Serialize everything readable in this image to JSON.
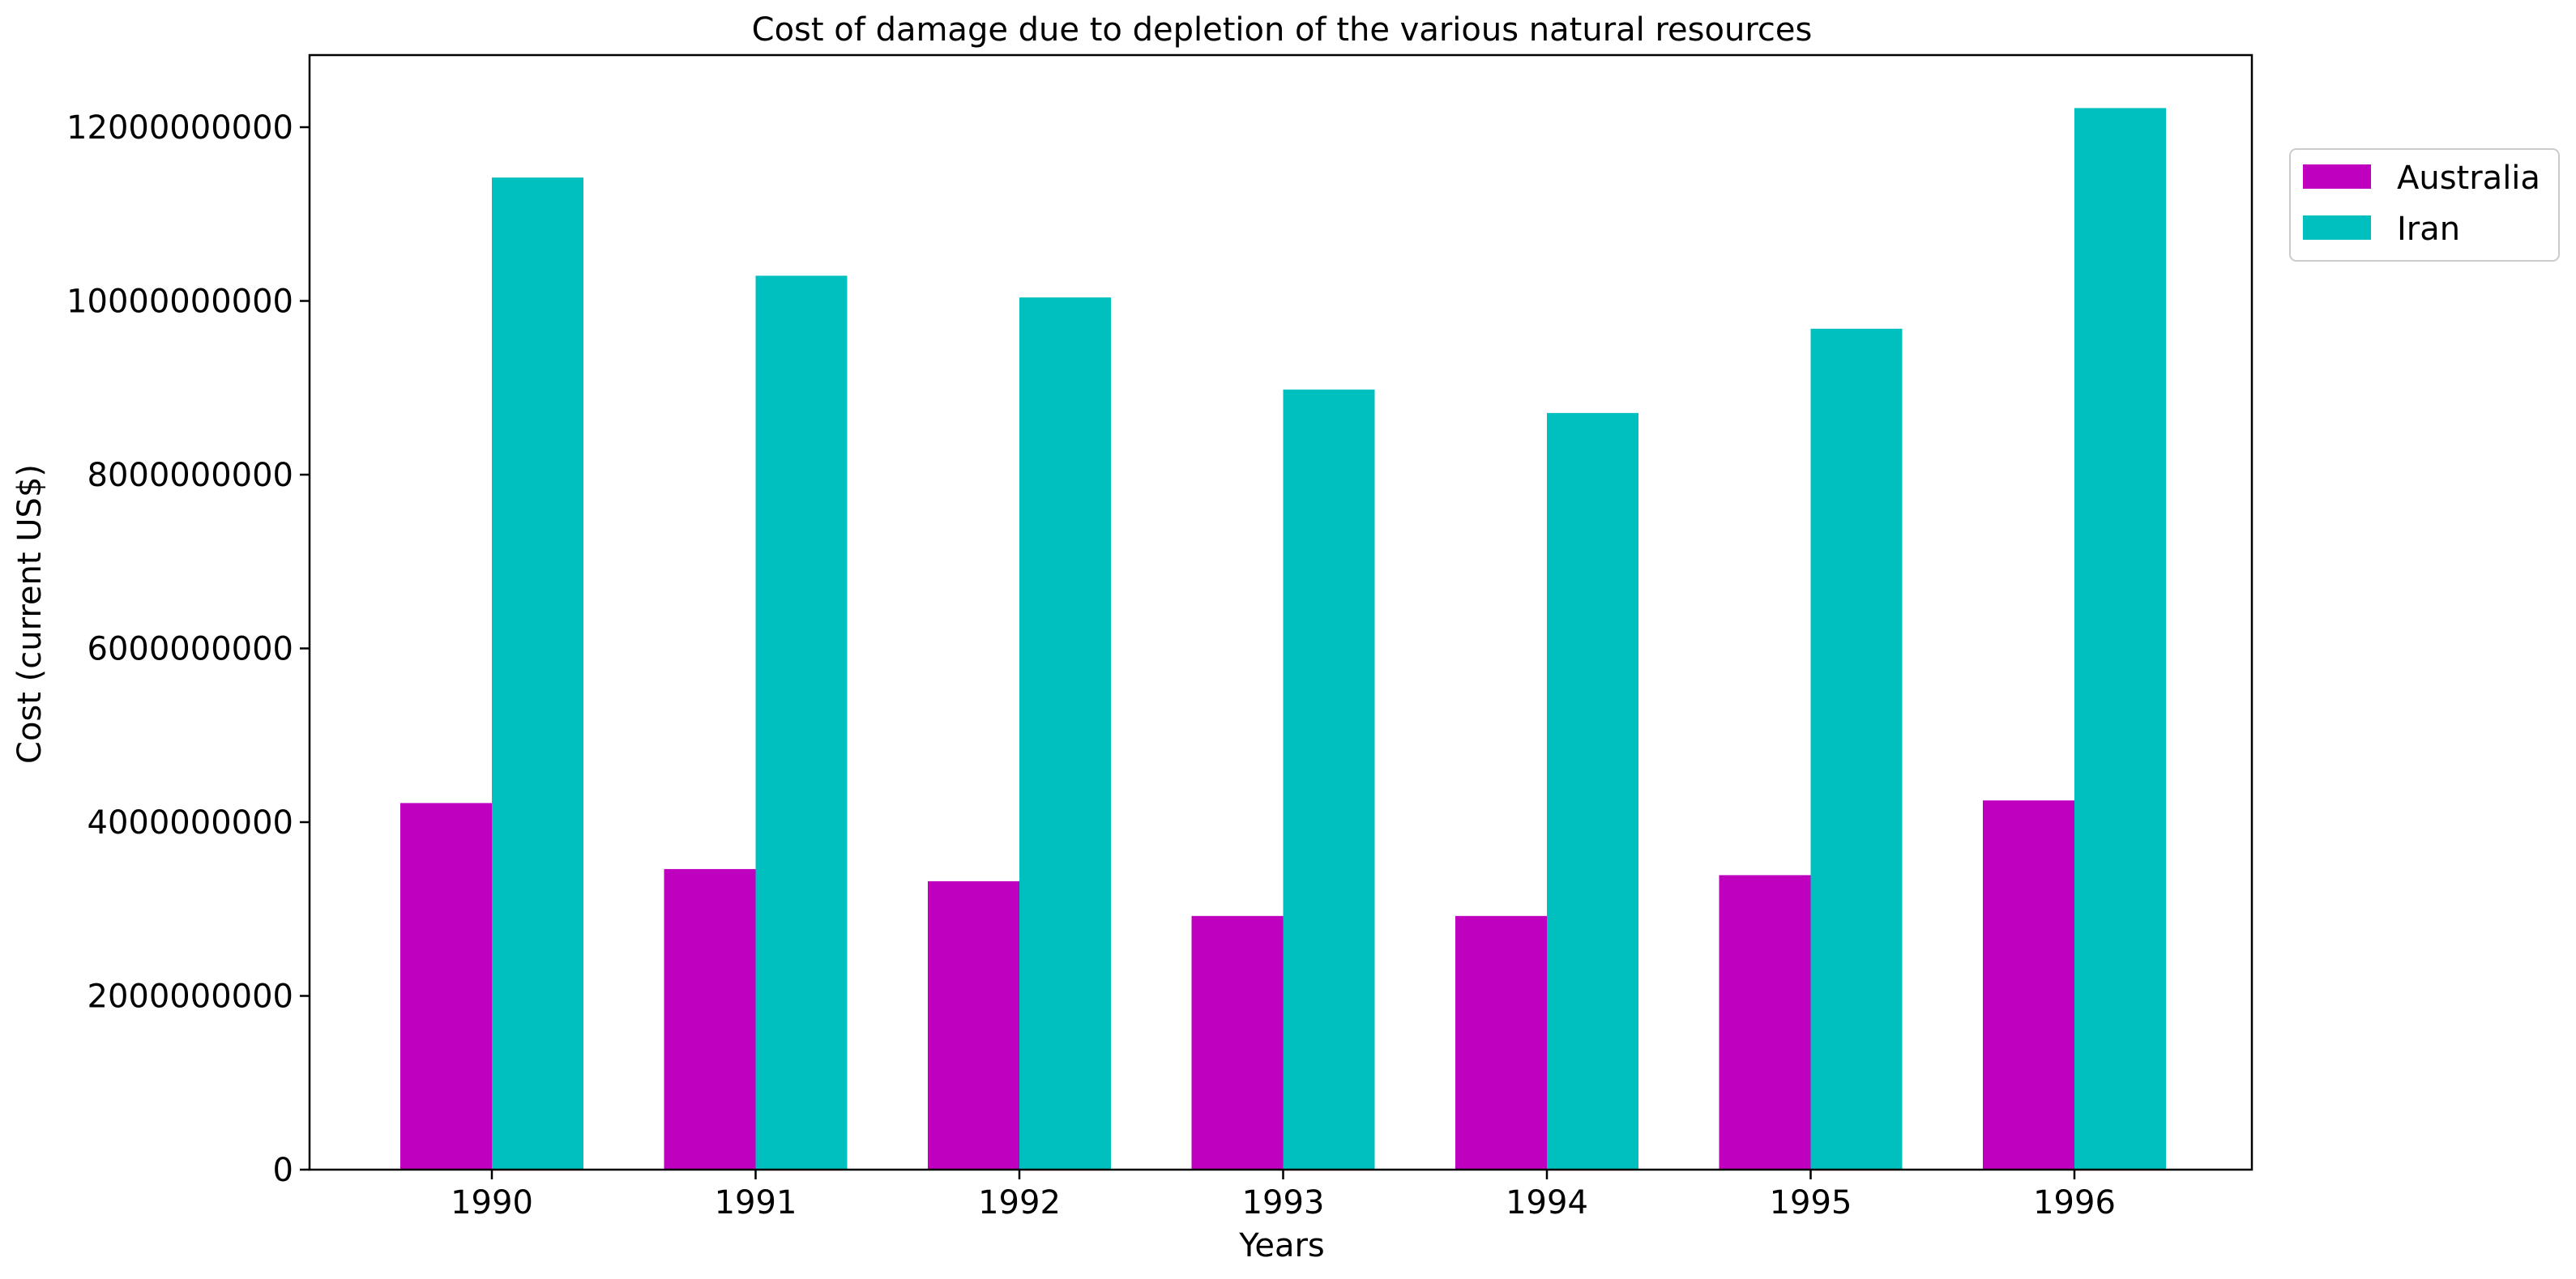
{
  "chart_data": {
    "type": "bar",
    "title": "Cost of damage due to depletion of the various natural resources",
    "xlabel": "Years",
    "ylabel": "Cost (current US$)",
    "categories": [
      "1990",
      "1991",
      "1992",
      "1993",
      "1994",
      "1995",
      "1996"
    ],
    "series": [
      {
        "name": "Australia",
        "color": "#bf00bf",
        "values": [
          4220000000,
          3460000000,
          3320000000,
          2920000000,
          2920000000,
          3390000000,
          4250000000
        ]
      },
      {
        "name": "Iran",
        "color": "#00bfbf",
        "values": [
          11420000000,
          10290000000,
          10040000000,
          8980000000,
          8710000000,
          9680000000,
          12220000000
        ]
      }
    ],
    "ylim": [
      0,
      12830000000
    ],
    "yticks": [
      "0",
      "2000000000",
      "4000000000",
      "6000000000",
      "8000000000",
      "10000000000",
      "12000000000"
    ],
    "grid": false,
    "legend_position": "upper right, outside plot"
  }
}
